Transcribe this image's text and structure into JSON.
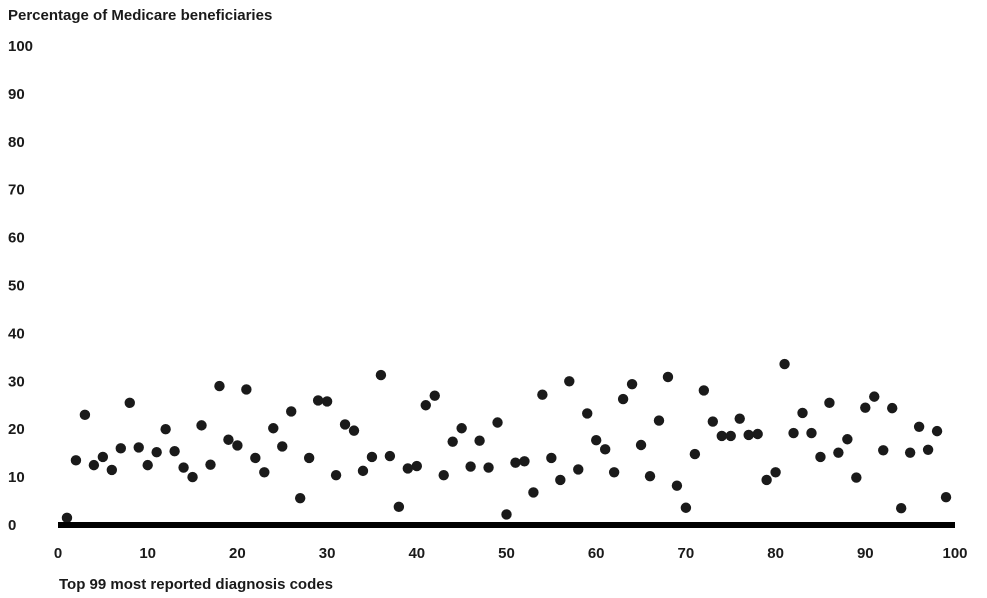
{
  "chart_data": {
    "type": "scatter",
    "title": "",
    "ylabel": "Percentage of Medicare beneficiaries",
    "xlabel": "Top 99 most reported diagnosis codes",
    "xlim": [
      0,
      100
    ],
    "ylim": [
      0,
      100
    ],
    "x_ticks": [
      "0",
      "10",
      "20",
      "30",
      "40",
      "50",
      "60",
      "70",
      "80",
      "90",
      "100"
    ],
    "y_ticks": [
      "0",
      "10",
      "20",
      "30",
      "40",
      "50",
      "60",
      "70",
      "80",
      "90",
      "100"
    ],
    "grid": false,
    "legend": "none",
    "marker_color": "#1a1a1a",
    "axis_color": "#000000",
    "x": [
      1,
      2,
      3,
      4,
      5,
      6,
      7,
      8,
      9,
      10,
      11,
      12,
      13,
      14,
      15,
      16,
      17,
      18,
      19,
      20,
      21,
      22,
      23,
      24,
      25,
      26,
      27,
      28,
      29,
      30,
      31,
      32,
      33,
      34,
      35,
      36,
      37,
      38,
      39,
      40,
      41,
      42,
      43,
      44,
      45,
      46,
      47,
      48,
      49,
      50,
      51,
      52,
      53,
      54,
      55,
      56,
      57,
      58,
      59,
      60,
      61,
      62,
      63,
      64,
      65,
      66,
      67,
      68,
      69,
      70,
      71,
      72,
      73,
      74,
      75,
      76,
      77,
      78,
      79,
      80,
      81,
      82,
      83,
      84,
      85,
      86,
      87,
      88,
      89,
      90,
      91,
      92,
      93,
      94,
      95,
      96,
      97,
      98,
      99
    ],
    "y": [
      1.5,
      13.5,
      23,
      12.5,
      14.2,
      11.5,
      16,
      25.5,
      16.2,
      12.5,
      15.2,
      20,
      15.4,
      12,
      10,
      20.8,
      12.6,
      29,
      17.8,
      16.6,
      28.3,
      14,
      11,
      20.2,
      16.4,
      23.7,
      5.6,
      14,
      26,
      25.8,
      10.4,
      21,
      19.7,
      11.3,
      14.2,
      31.3,
      14.4,
      3.8,
      11.8,
      12.3,
      25,
      27,
      10.4,
      17.4,
      20.2,
      12.2,
      17.6,
      12,
      21.4,
      2.2,
      13,
      13.3,
      6.8,
      27.2,
      14,
      9.4,
      30,
      11.6,
      23.3,
      17.7,
      15.8,
      11,
      26.3,
      29.4,
      16.7,
      10.2,
      21.8,
      30.9,
      8.2,
      3.6,
      14.8,
      28.1,
      21.6,
      18.6,
      18.6,
      22.2,
      18.8,
      19,
      9.4,
      11,
      33.6,
      19.2,
      23.4,
      19.2,
      14.2,
      25.5,
      15.1,
      17.9,
      9.9,
      24.5,
      26.8,
      15.6,
      24.4,
      3.5,
      15.1,
      20.5,
      15.7,
      19.6,
      5.8
    ]
  }
}
